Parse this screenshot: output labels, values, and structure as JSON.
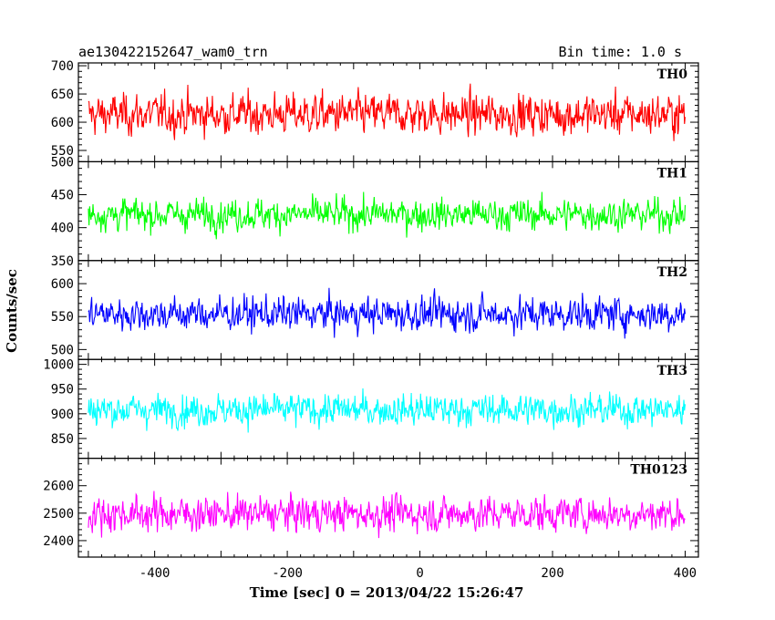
{
  "header": {
    "title": "ae130422152647_wam0_trn",
    "bin_time": "Bin time: 1.0 s"
  },
  "chart_data": {
    "type": "line",
    "xlabel": "Time [sec] 0 = 2013/04/22 15:26:47",
    "ylabel": "Counts/sec",
    "xlim": [
      -515,
      420
    ],
    "xticks": [
      -400,
      -200,
      0,
      200,
      400
    ],
    "grid": false,
    "panels": [
      {
        "name": "TH0",
        "color": "#ff0000",
        "ylim": [
          530,
          705
        ],
        "yticks": [
          550,
          600,
          650,
          700
        ],
        "mean": 614,
        "amplitude": 42,
        "range": [
          520,
          705
        ]
      },
      {
        "name": "TH1",
        "color": "#00ff00",
        "ylim": [
          350,
          500
        ],
        "yticks": [
          350,
          400,
          450,
          500
        ],
        "mean": 420,
        "amplitude": 28,
        "range": [
          345,
          500
        ]
      },
      {
        "name": "TH2",
        "color": "#0000ff",
        "ylim": [
          485,
          635
        ],
        "yticks": [
          500,
          550,
          600
        ],
        "mean": 554,
        "amplitude": 30,
        "range": [
          480,
          630
        ]
      },
      {
        "name": "TH3",
        "color": "#00ffff",
        "ylim": [
          810,
          1010
        ],
        "yticks": [
          850,
          900,
          950,
          1000
        ],
        "mean": 908,
        "amplitude": 38,
        "range": [
          815,
          1005
        ]
      },
      {
        "name": "TH0123",
        "color": "#ff00ff",
        "ylim": [
          2340,
          2700
        ],
        "yticks": [
          2400,
          2500,
          2600
        ],
        "mean": 2498,
        "amplitude": 75,
        "range": [
          2345,
          2680
        ]
      }
    ],
    "x_start": -500,
    "x_end": 400,
    "x_step": 1
  }
}
